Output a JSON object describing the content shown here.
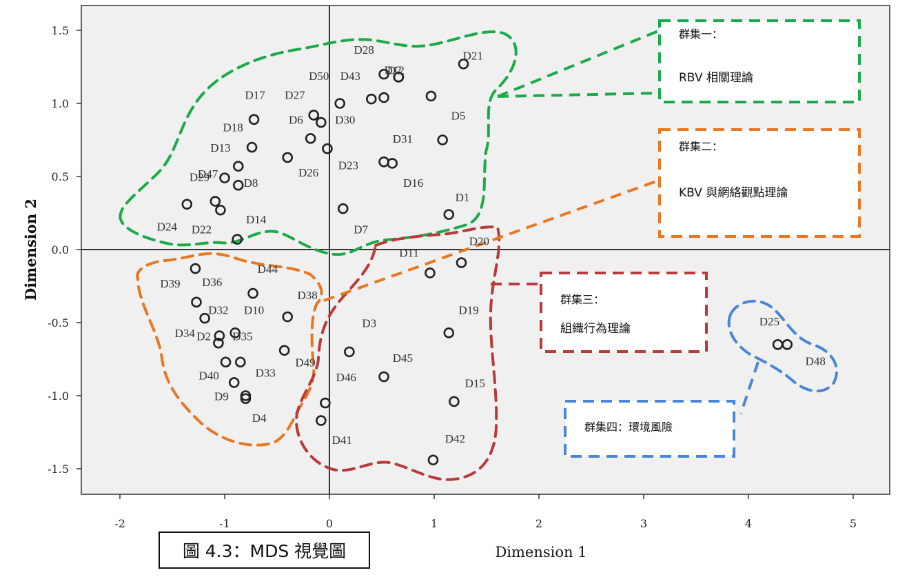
{
  "caption": "圖 4.3：MDS 視覺圖",
  "chart_data": {
    "type": "scatter",
    "xlabel": "Dimension 1",
    "ylabel": "Dimension 2",
    "xlim": [
      -2.4,
      5.4
    ],
    "ylim": [
      -1.68,
      1.68
    ],
    "xticks": [
      "-2",
      "-1",
      "0",
      "1",
      "2",
      "3",
      "4",
      "5"
    ],
    "yticks": [
      "1.5",
      "1.0",
      "0.5",
      "0.0",
      "-0.5",
      "-1.0",
      "-1.5"
    ],
    "points": [
      {
        "label": "D21",
        "x": 1.28,
        "y": 1.27
      },
      {
        "label": "D28",
        "x": 0.52,
        "y": 1.2
      },
      {
        "label": "D12",
        "x": 0.66,
        "y": 1.18
      },
      {
        "label": "D2",
        "x": 0.66,
        "y": 1.18
      },
      {
        "label": "D43",
        "x": 0.4,
        "y": 1.03
      },
      {
        "label": "D50",
        "x": 0.52,
        "y": 1.04
      },
      {
        "label": "D30",
        "x": 0.1,
        "y": 1.0
      },
      {
        "label": "D27",
        "x": 0.97,
        "y": 1.05
      },
      {
        "label": "D17",
        "x": -0.72,
        "y": 0.89
      },
      {
        "label": "D6",
        "x": -0.15,
        "y": 0.92
      },
      {
        "label": "D18",
        "x": -0.08,
        "y": 0.87
      },
      {
        "label": "D5",
        "x": 1.08,
        "y": 0.75
      },
      {
        "label": "D13",
        "x": -0.74,
        "y": 0.7
      },
      {
        "label": "D26",
        "x": -0.18,
        "y": 0.76
      },
      {
        "label": "D23",
        "x": -0.02,
        "y": 0.69
      },
      {
        "label": "D31",
        "x": 0.52,
        "y": 0.6
      },
      {
        "label": "D16",
        "x": 0.6,
        "y": 0.59
      },
      {
        "label": "D47",
        "x": -0.4,
        "y": 0.63
      },
      {
        "label": "D37",
        "x": -0.87,
        "y": 0.57
      },
      {
        "label": "D29",
        "x": -1.0,
        "y": 0.49
      },
      {
        "label": "D8",
        "x": -0.87,
        "y": 0.44
      },
      {
        "label": "D24",
        "x": -1.36,
        "y": 0.31
      },
      {
        "label": "D22",
        "x": -1.09,
        "y": 0.33
      },
      {
        "label": "D14",
        "x": -1.04,
        "y": 0.27
      },
      {
        "label": "D1",
        "x": 1.14,
        "y": 0.24
      },
      {
        "label": "D7",
        "x": 0.13,
        "y": 0.28
      },
      {
        "label": "D22b",
        "x": -0.88,
        "y": 0.07
      },
      {
        "label": "D20",
        "x": 1.26,
        "y": -0.09
      },
      {
        "label": "D11",
        "x": 0.96,
        "y": -0.16
      },
      {
        "label": "D39",
        "x": -1.28,
        "y": -0.13
      },
      {
        "label": "D44",
        "x": -0.73,
        "y": -0.3
      },
      {
        "label": "D36",
        "x": -1.27,
        "y": -0.36
      },
      {
        "label": "D38",
        "x": -0.4,
        "y": -0.46
      },
      {
        "label": "D32",
        "x": -1.19,
        "y": -0.47
      },
      {
        "label": "D19",
        "x": 1.14,
        "y": -0.57
      },
      {
        "label": "D10",
        "x": -0.9,
        "y": -0.57
      },
      {
        "label": "D34",
        "x": -1.05,
        "y": -0.59
      },
      {
        "label": "D2b",
        "x": -1.06,
        "y": -0.64
      },
      {
        "label": "D35",
        "x": -0.43,
        "y": -0.69
      },
      {
        "label": "D3",
        "x": 0.19,
        "y": -0.7
      },
      {
        "label": "D49",
        "x": -0.99,
        "y": -0.77
      },
      {
        "label": "D33",
        "x": -0.85,
        "y": -0.77
      },
      {
        "label": "D45",
        "x": 0.52,
        "y": -0.87
      },
      {
        "label": "D40",
        "x": -0.91,
        "y": -0.91
      },
      {
        "label": "D9",
        "x": -0.8,
        "y": -1.0
      },
      {
        "label": "D4",
        "x": -0.8,
        "y": -1.02
      },
      {
        "label": "D15",
        "x": 1.19,
        "y": -1.04
      },
      {
        "label": "D46",
        "x": -0.04,
        "y": -1.05
      },
      {
        "label": "D41",
        "x": -0.08,
        "y": -1.17
      },
      {
        "label": "D42",
        "x": 0.99,
        "y": -1.44
      },
      {
        "label": "D25",
        "x": 4.28,
        "y": -0.65
      },
      {
        "label": "D48",
        "x": 4.37,
        "y": -0.65
      }
    ],
    "point_labels": [
      {
        "text": "D21",
        "x": 1.37,
        "y": 1.3
      },
      {
        "text": "D28",
        "x": 0.33,
        "y": 1.34
      },
      {
        "text": "D12",
        "x": 0.62,
        "y": 1.2
      },
      {
        "text": "D2",
        "x": 0.62,
        "y": 1.2
      },
      {
        "text": "D50",
        "x": -0.1,
        "y": 1.16
      },
      {
        "text": "D43",
        "x": 0.2,
        "y": 1.16
      },
      {
        "text": "D17",
        "x": -0.71,
        "y": 1.03
      },
      {
        "text": "D27",
        "x": -0.33,
        "y": 1.03
      },
      {
        "text": "D18",
        "x": -0.92,
        "y": 0.81
      },
      {
        "text": "D6",
        "x": -0.32,
        "y": 0.86
      },
      {
        "text": "D30",
        "x": 0.15,
        "y": 0.86
      },
      {
        "text": "D5",
        "x": 1.23,
        "y": 0.89
      },
      {
        "text": "D13",
        "x": -1.04,
        "y": 0.67
      },
      {
        "text": "D31",
        "x": 0.7,
        "y": 0.73
      },
      {
        "text": "D26",
        "x": -0.2,
        "y": 0.5
      },
      {
        "text": "D23",
        "x": 0.18,
        "y": 0.55
      },
      {
        "text": "D16",
        "x": 0.8,
        "y": 0.43
      },
      {
        "text": "D47",
        "x": -1.16,
        "y": 0.49
      },
      {
        "text": "D29",
        "x": -1.24,
        "y": 0.47
      },
      {
        "text": "D8",
        "x": -0.75,
        "y": 0.43
      },
      {
        "text": "D1",
        "x": 1.27,
        "y": 0.33
      },
      {
        "text": "D24",
        "x": -1.55,
        "y": 0.13
      },
      {
        "text": "D22",
        "x": -1.22,
        "y": 0.11
      },
      {
        "text": "D14",
        "x": -0.7,
        "y": 0.18
      },
      {
        "text": "D7",
        "x": 0.3,
        "y": 0.11
      },
      {
        "text": "D20",
        "x": 1.43,
        "y": 0.03
      },
      {
        "text": "D11",
        "x": 0.76,
        "y": -0.05
      },
      {
        "text": "D44",
        "x": -0.59,
        "y": -0.16
      },
      {
        "text": "D39",
        "x": -1.52,
        "y": -0.26
      },
      {
        "text": "D36",
        "x": -1.12,
        "y": -0.25
      },
      {
        "text": "D38",
        "x": -0.21,
        "y": -0.34
      },
      {
        "text": "D32",
        "x": -1.06,
        "y": -0.44
      },
      {
        "text": "D10",
        "x": -0.72,
        "y": -0.44
      },
      {
        "text": "D19",
        "x": 1.33,
        "y": -0.44
      },
      {
        "text": "D34",
        "x": -1.38,
        "y": -0.6
      },
      {
        "text": "D2",
        "x": -1.2,
        "y": -0.62
      },
      {
        "text": "D35",
        "x": -0.83,
        "y": -0.62
      },
      {
        "text": "D3",
        "x": 0.38,
        "y": -0.53
      },
      {
        "text": "D45",
        "x": 0.7,
        "y": -0.77
      },
      {
        "text": "D49",
        "x": -0.23,
        "y": -0.8
      },
      {
        "text": "D33",
        "x": -0.61,
        "y": -0.87
      },
      {
        "text": "D46",
        "x": 0.16,
        "y": -0.9
      },
      {
        "text": "D40",
        "x": -1.15,
        "y": -0.89
      },
      {
        "text": "D15",
        "x": 1.39,
        "y": -0.94
      },
      {
        "text": "D9",
        "x": -1.03,
        "y": -1.03
      },
      {
        "text": "D4",
        "x": -0.67,
        "y": -1.18
      },
      {
        "text": "D41",
        "x": 0.12,
        "y": -1.33
      },
      {
        "text": "D42",
        "x": 1.2,
        "y": -1.32
      },
      {
        "text": "D25",
        "x": 4.2,
        "y": -0.52
      },
      {
        "text": "D48",
        "x": 4.64,
        "y": -0.79
      }
    ],
    "clusters": [
      {
        "title": "群集一：",
        "subtitle": "RBV 相關理論",
        "color": "#1aaa4a"
      },
      {
        "title": "群集二：",
        "subtitle": "KBV 與網絡觀點理論",
        "color": "#e87722"
      },
      {
        "title": "群集三：",
        "subtitle": "組織行為理論",
        "color": "#b83a3a"
      },
      {
        "title": "群集四：環境風險",
        "subtitle": "",
        "color": "#4a86d6"
      }
    ]
  }
}
